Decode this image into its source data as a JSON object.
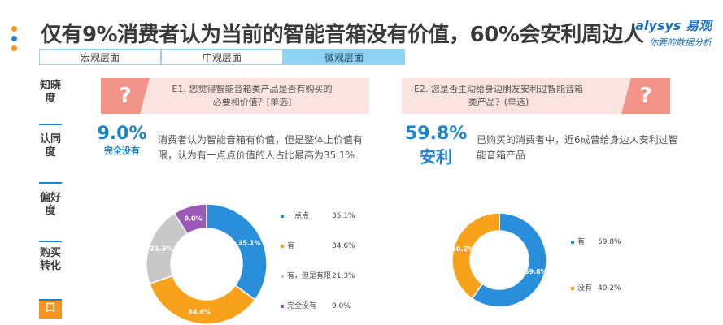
{
  "title": "仅有9%消费者认为当前的智能音箱没有价值，60%会安利周边人",
  "logo": {
    "line1": "alysys 易观",
    "line2": "你要的数据分析"
  },
  "tabs": [
    "宏观层面",
    "中观层面",
    "微观层面"
  ],
  "active_tab": 2,
  "side_items": [
    "知晓度",
    "认同度",
    "偏好度",
    "购买转化",
    "口"
  ],
  "q1": {
    "mark": "?",
    "text": "E1. 您觉得智能音箱类产品是否有购买的必要和价值？[单选]"
  },
  "q2": {
    "mark": "?",
    "text": "E2. 您是否主动给身边朋友安利过智能音箱类产品？(单选)"
  },
  "stat1": {
    "value": "9.0%",
    "label": "完全没有"
  },
  "stat2": {
    "value": "59.8%",
    "label": "安利"
  },
  "desc1": "消费者认为智能音箱有价值，但是整体上价值有限，认为有一点点价值的人占比最高为35.1%",
  "desc2": "已购买的消费者中，近6成曾给身边人安利过智能音箱产品",
  "colors": {
    "blue": "#2a8fdb",
    "orange": "#f7a21b",
    "gray": "#c8c8c8",
    "purple": "#9b59b6",
    "accent": "#1e84c9"
  },
  "chart_data": [
    {
      "type": "pie",
      "categories": [
        "一点点",
        "有",
        "有，但是有限",
        "完全没有"
      ],
      "values": [
        35.1,
        34.6,
        21.3,
        9.0
      ],
      "labels": [
        "35.1%",
        "34.6%",
        "21.3%",
        "9.0%"
      ],
      "legend_labels": [
        "35.1%",
        "34.6%",
        "21.3%",
        "9.0%"
      ]
    },
    {
      "type": "pie",
      "categories": [
        "有",
        "没有"
      ],
      "values": [
        59.8,
        40.2
      ],
      "labels": [
        "59.8%",
        "40.2%"
      ],
      "legend_labels": [
        "59.8%",
        "40.2%"
      ]
    }
  ]
}
